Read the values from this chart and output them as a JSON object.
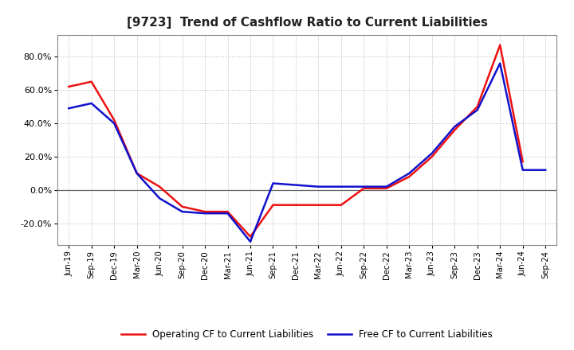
{
  "title": "[9723]  Trend of Cashflow Ratio to Current Liabilities",
  "x_labels": [
    "Jun-19",
    "Sep-19",
    "Dec-19",
    "Mar-20",
    "Jun-20",
    "Sep-20",
    "Dec-20",
    "Mar-21",
    "Jun-21",
    "Sep-21",
    "Dec-21",
    "Mar-22",
    "Jun-22",
    "Sep-22",
    "Dec-22",
    "Mar-23",
    "Jun-23",
    "Sep-23",
    "Dec-23",
    "Mar-24",
    "Jun-24",
    "Sep-24"
  ],
  "operating_cf": [
    0.62,
    0.65,
    0.42,
    0.1,
    0.02,
    -0.1,
    -0.13,
    -0.13,
    -0.28,
    -0.09,
    -0.09,
    -0.09,
    -0.09,
    0.01,
    0.01,
    0.08,
    0.2,
    0.36,
    0.5,
    0.87,
    0.17,
    null
  ],
  "free_cf": [
    0.49,
    0.52,
    0.4,
    0.1,
    -0.05,
    -0.13,
    -0.14,
    -0.14,
    -0.31,
    0.04,
    0.03,
    0.02,
    0.02,
    0.02,
    0.02,
    0.1,
    0.22,
    0.38,
    0.48,
    0.76,
    0.12,
    0.12
  ],
  "operating_color": "#EE1111",
  "free_color": "#1111CC",
  "ylim_low": -0.33,
  "ylim_high": 0.93,
  "yticks": [
    -0.2,
    0.0,
    0.2,
    0.4,
    0.6,
    0.8
  ],
  "background_color": "#FFFFFF",
  "legend_op": "Operating CF to Current Liabilities",
  "legend_free": "Free CF to Current Liabilities",
  "title_fontsize": 11,
  "linewidth": 1.8
}
